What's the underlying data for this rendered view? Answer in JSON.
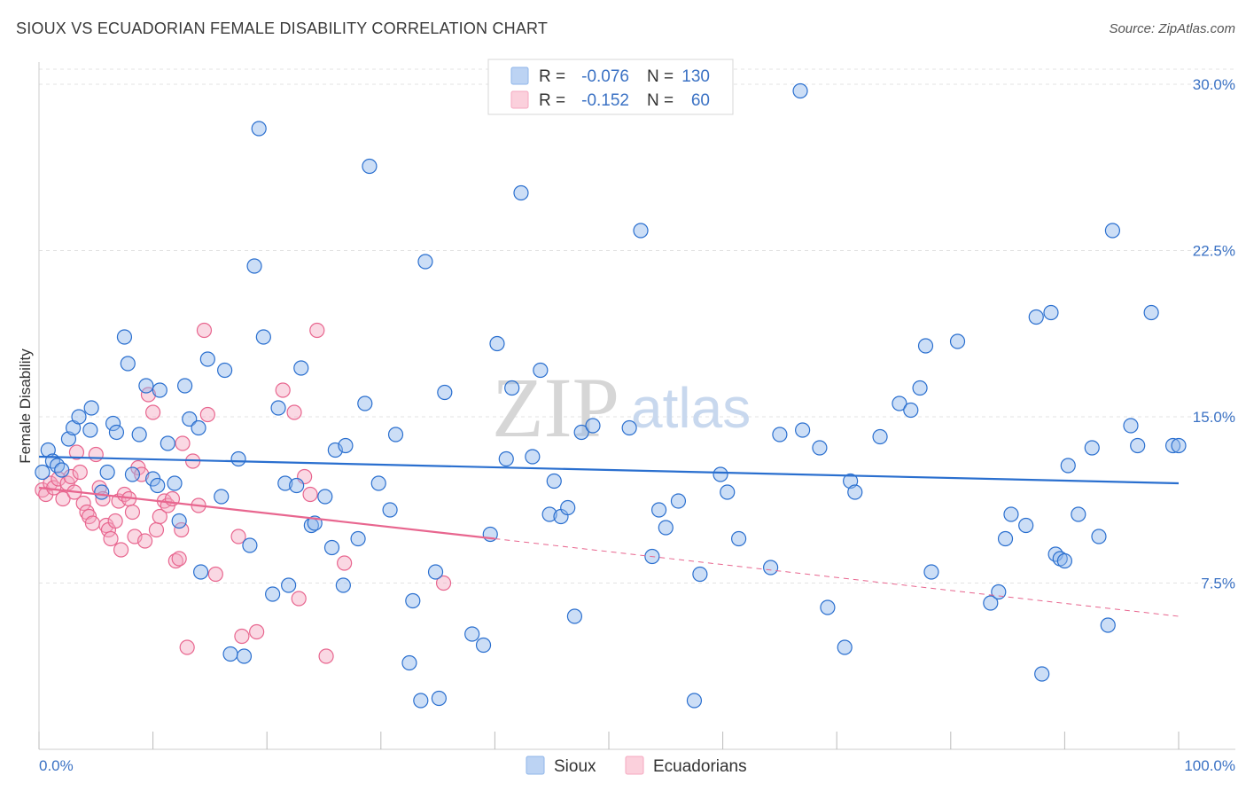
{
  "title": "SIOUX VS ECUADORIAN FEMALE DISABILITY CORRELATION CHART",
  "source": "Source: ZipAtlas.com",
  "watermark": {
    "zip": "ZIP",
    "atlas": "atlas"
  },
  "colors": {
    "sioux": "#8fb6ea",
    "sioux_line": "#2a6fcf",
    "ecuadorian": "#f5a9c0",
    "ecuadorian_line": "#e8668f",
    "tick": "#3b72c4",
    "grid": "#e3e3e3"
  },
  "legend_box": {
    "rows": [
      {
        "r_label": "R =",
        "r_value": "-0.076",
        "n_label": "N =",
        "n_value": "130"
      },
      {
        "r_label": "R =",
        "r_value": "-0.152",
        "n_label": "N =",
        "n_value": "60"
      }
    ]
  },
  "bottom_legend": [
    "Sioux",
    "Ecuadorians"
  ],
  "chart_data": {
    "type": "scatter",
    "title": "SIOUX VS ECUADORIAN FEMALE DISABILITY CORRELATION CHART",
    "xlabel": "",
    "ylabel": "Female Disability",
    "xlim": [
      0,
      100
    ],
    "ylim": [
      0,
      31
    ],
    "x_tick_labels": [
      "0.0%",
      "100.0%"
    ],
    "y_ticks": [
      7.5,
      15.0,
      22.5,
      30.0
    ],
    "y_tick_labels": [
      "7.5%",
      "15.0%",
      "22.5%",
      "30.0%"
    ],
    "grid": true,
    "legend_position": "top-center",
    "series": [
      {
        "name": "Sioux",
        "r": -0.076,
        "n": 130,
        "trend": {
          "x": [
            0,
            100
          ],
          "y": [
            13.2,
            12.0
          ]
        },
        "points": [
          [
            0.3,
            12.5
          ],
          [
            0.8,
            13.5
          ],
          [
            1.2,
            13.0
          ],
          [
            1.6,
            12.8
          ],
          [
            2.0,
            12.6
          ],
          [
            2.6,
            14.0
          ],
          [
            3.0,
            14.5
          ],
          [
            3.5,
            15.0
          ],
          [
            4.5,
            14.4
          ],
          [
            4.6,
            15.4
          ],
          [
            5.5,
            11.6
          ],
          [
            6.0,
            12.5
          ],
          [
            6.5,
            14.7
          ],
          [
            6.8,
            14.3
          ],
          [
            7.5,
            18.6
          ],
          [
            7.8,
            17.4
          ],
          [
            8.2,
            12.4
          ],
          [
            8.8,
            14.2
          ],
          [
            9.4,
            16.4
          ],
          [
            10.0,
            12.2
          ],
          [
            10.4,
            11.9
          ],
          [
            10.6,
            16.2
          ],
          [
            11.3,
            13.8
          ],
          [
            11.9,
            12.0
          ],
          [
            12.3,
            10.3
          ],
          [
            12.8,
            16.4
          ],
          [
            13.2,
            14.9
          ],
          [
            14.0,
            14.5
          ],
          [
            14.2,
            8.0
          ],
          [
            14.8,
            17.6
          ],
          [
            16.0,
            11.4
          ],
          [
            16.3,
            17.1
          ],
          [
            16.8,
            4.3
          ],
          [
            17.5,
            13.1
          ],
          [
            18.0,
            4.2
          ],
          [
            18.5,
            9.2
          ],
          [
            18.9,
            21.8
          ],
          [
            19.3,
            28.0
          ],
          [
            19.7,
            18.6
          ],
          [
            20.5,
            7.0
          ],
          [
            21.0,
            15.4
          ],
          [
            21.6,
            12.0
          ],
          [
            21.9,
            7.4
          ],
          [
            22.6,
            11.9
          ],
          [
            23.0,
            17.2
          ],
          [
            23.9,
            10.1
          ],
          [
            24.2,
            10.2
          ],
          [
            25.1,
            11.4
          ],
          [
            25.7,
            9.1
          ],
          [
            26.0,
            13.5
          ],
          [
            26.7,
            7.4
          ],
          [
            26.9,
            13.7
          ],
          [
            28.0,
            9.5
          ],
          [
            28.6,
            15.6
          ],
          [
            29.0,
            26.3
          ],
          [
            29.8,
            12.0
          ],
          [
            30.8,
            10.8
          ],
          [
            31.3,
            14.2
          ],
          [
            32.5,
            3.9
          ],
          [
            32.8,
            6.7
          ],
          [
            33.5,
            2.2
          ],
          [
            33.9,
            22.0
          ],
          [
            34.8,
            8.0
          ],
          [
            35.1,
            2.3
          ],
          [
            35.6,
            16.1
          ],
          [
            38.0,
            5.2
          ],
          [
            39.0,
            4.7
          ],
          [
            39.6,
            9.7
          ],
          [
            40.2,
            18.3
          ],
          [
            41.0,
            13.1
          ],
          [
            41.5,
            16.3
          ],
          [
            42.3,
            25.1
          ],
          [
            43.3,
            13.2
          ],
          [
            44.0,
            17.1
          ],
          [
            44.8,
            10.6
          ],
          [
            45.2,
            12.1
          ],
          [
            45.8,
            10.5
          ],
          [
            46.4,
            10.9
          ],
          [
            47.0,
            6.0
          ],
          [
            47.6,
            14.3
          ],
          [
            48.6,
            14.6
          ],
          [
            51.8,
            14.5
          ],
          [
            52.8,
            23.4
          ],
          [
            53.8,
            8.7
          ],
          [
            54.4,
            10.8
          ],
          [
            55.0,
            10.0
          ],
          [
            56.1,
            11.2
          ],
          [
            57.5,
            2.2
          ],
          [
            58.0,
            7.9
          ],
          [
            59.8,
            12.4
          ],
          [
            60.4,
            11.6
          ],
          [
            61.4,
            9.5
          ],
          [
            64.2,
            8.2
          ],
          [
            65.0,
            14.2
          ],
          [
            66.8,
            29.7
          ],
          [
            67.0,
            14.4
          ],
          [
            68.5,
            13.6
          ],
          [
            69.2,
            6.4
          ],
          [
            70.7,
            4.6
          ],
          [
            71.2,
            12.1
          ],
          [
            71.6,
            11.6
          ],
          [
            73.8,
            14.1
          ],
          [
            75.5,
            15.6
          ],
          [
            76.5,
            15.3
          ],
          [
            77.3,
            16.3
          ],
          [
            77.8,
            18.2
          ],
          [
            78.3,
            8.0
          ],
          [
            80.6,
            18.4
          ],
          [
            83.5,
            6.6
          ],
          [
            84.2,
            7.1
          ],
          [
            84.8,
            9.5
          ],
          [
            85.3,
            10.6
          ],
          [
            86.6,
            10.1
          ],
          [
            87.5,
            19.5
          ],
          [
            88.0,
            3.4
          ],
          [
            88.8,
            19.7
          ],
          [
            89.2,
            8.8
          ],
          [
            89.6,
            8.6
          ],
          [
            90.0,
            8.5
          ],
          [
            90.3,
            12.8
          ],
          [
            91.2,
            10.6
          ],
          [
            92.4,
            13.6
          ],
          [
            93.0,
            9.6
          ],
          [
            93.8,
            5.6
          ],
          [
            94.2,
            23.4
          ],
          [
            95.8,
            14.6
          ],
          [
            96.4,
            13.7
          ],
          [
            97.6,
            19.7
          ],
          [
            99.5,
            13.7
          ],
          [
            100.0,
            13.7
          ]
        ]
      },
      {
        "name": "Ecuadorians",
        "r": -0.152,
        "n": 60,
        "trend": {
          "x": [
            0,
            40
          ],
          "y": [
            11.8,
            9.5
          ]
        },
        "trend_dashed": {
          "x": [
            40,
            100
          ],
          "y": [
            9.5,
            6.0
          ]
        },
        "points": [
          [
            0.3,
            11.7
          ],
          [
            0.6,
            11.5
          ],
          [
            1.0,
            12.0
          ],
          [
            1.3,
            11.8
          ],
          [
            1.7,
            12.2
          ],
          [
            2.1,
            11.3
          ],
          [
            2.5,
            12.0
          ],
          [
            2.8,
            12.3
          ],
          [
            3.1,
            11.6
          ],
          [
            3.3,
            13.4
          ],
          [
            3.6,
            12.5
          ],
          [
            3.9,
            11.1
          ],
          [
            4.2,
            10.7
          ],
          [
            4.4,
            10.5
          ],
          [
            4.7,
            10.2
          ],
          [
            5.0,
            13.3
          ],
          [
            5.3,
            11.8
          ],
          [
            5.6,
            11.3
          ],
          [
            5.9,
            10.1
          ],
          [
            6.1,
            9.9
          ],
          [
            6.3,
            9.5
          ],
          [
            6.7,
            10.3
          ],
          [
            7.0,
            11.2
          ],
          [
            7.2,
            9.0
          ],
          [
            7.5,
            11.5
          ],
          [
            7.9,
            11.3
          ],
          [
            8.2,
            10.7
          ],
          [
            8.4,
            9.6
          ],
          [
            8.7,
            12.7
          ],
          [
            9.0,
            12.4
          ],
          [
            9.3,
            9.4
          ],
          [
            9.6,
            16.0
          ],
          [
            10.0,
            15.2
          ],
          [
            10.3,
            9.9
          ],
          [
            10.6,
            10.5
          ],
          [
            11.0,
            11.2
          ],
          [
            11.3,
            11.0
          ],
          [
            11.7,
            11.3
          ],
          [
            12.0,
            8.5
          ],
          [
            12.3,
            8.6
          ],
          [
            12.6,
            13.8
          ],
          [
            13.0,
            4.6
          ],
          [
            13.5,
            13.0
          ],
          [
            14.0,
            11.0
          ],
          [
            14.5,
            18.9
          ],
          [
            14.8,
            15.1
          ],
          [
            15.5,
            7.9
          ],
          [
            17.5,
            9.6
          ],
          [
            17.8,
            5.1
          ],
          [
            19.1,
            5.3
          ],
          [
            21.4,
            16.2
          ],
          [
            22.4,
            15.2
          ],
          [
            22.8,
            6.8
          ],
          [
            23.3,
            12.3
          ],
          [
            23.8,
            11.5
          ],
          [
            24.4,
            18.9
          ],
          [
            25.2,
            4.2
          ],
          [
            26.8,
            8.4
          ],
          [
            35.5,
            7.5
          ],
          [
            12.5,
            9.9
          ]
        ]
      }
    ]
  }
}
